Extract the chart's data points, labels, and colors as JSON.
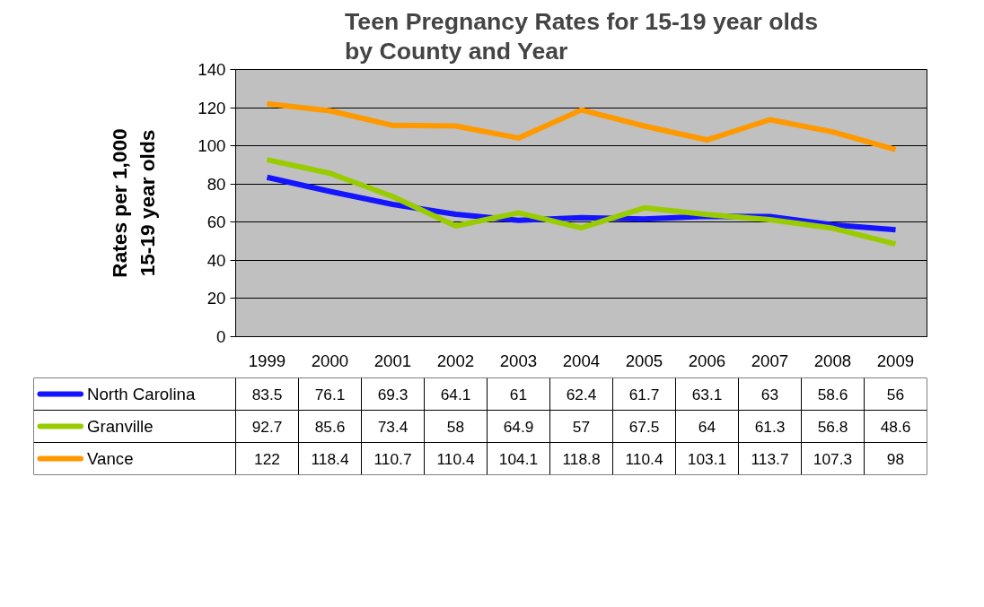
{
  "chart_data": {
    "type": "line",
    "title": "Teen Pregnancy Rates for 15-19 year olds\nby County and Year",
    "ylabel": "Rates per 1,000\n15-19 year olds",
    "categories": [
      "1999",
      "2000",
      "2001",
      "2002",
      "2003",
      "2004",
      "2005",
      "2006",
      "2007",
      "2008",
      "2009"
    ],
    "series": [
      {
        "name": "North Carolina",
        "color": "#1414ff",
        "values": [
          83.5,
          76.1,
          69.3,
          64.1,
          61,
          62.4,
          61.7,
          63.1,
          63,
          58.6,
          56
        ]
      },
      {
        "name": "Granville",
        "color": "#99cc00",
        "values": [
          92.7,
          85.6,
          73.4,
          58,
          64.9,
          57,
          67.5,
          64,
          61.3,
          56.8,
          48.6
        ]
      },
      {
        "name": "Vance",
        "color": "#ff9900",
        "values": [
          122,
          118.4,
          110.7,
          110.4,
          104.1,
          118.8,
          110.4,
          103.1,
          113.7,
          107.3,
          98
        ]
      }
    ],
    "ylim": [
      0,
      140
    ],
    "yticks": [
      0,
      20,
      40,
      60,
      80,
      100,
      120,
      140
    ],
    "grid": "y",
    "legend": "bottom left",
    "data_labels": true,
    "line_style": "solid",
    "marker": "none"
  }
}
